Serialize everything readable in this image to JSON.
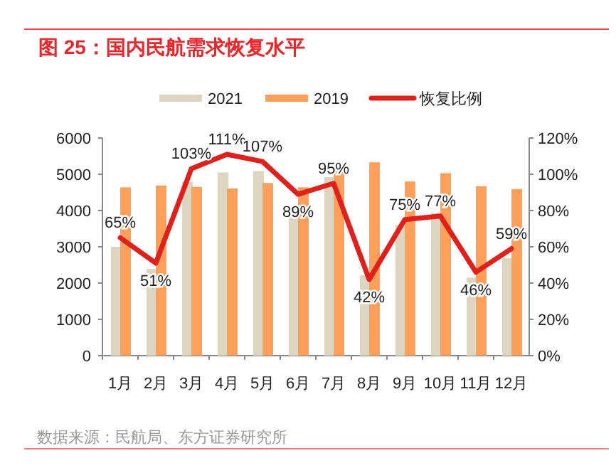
{
  "chart_data": {
    "type": "bar",
    "title": "图 25：国内民航需求恢复水平",
    "categories": [
      "1月",
      "2月",
      "3月",
      "4月",
      "5月",
      "6月",
      "7月",
      "8月",
      "9月",
      "10月",
      "11月",
      "12月"
    ],
    "series": [
      {
        "name": "2021",
        "color": "#ddd5bf",
        "values": [
          3000,
          2390,
          4790,
          5050,
          5090,
          4120,
          4920,
          2220,
          3610,
          3930,
          2150,
          2690
        ]
      },
      {
        "name": "2019",
        "color": "#ff9f5a",
        "values": [
          4640,
          4690,
          4650,
          4610,
          4760,
          4640,
          5160,
          5330,
          4800,
          5030,
          4670,
          4590
        ]
      },
      {
        "name": "恢复比例",
        "type": "line",
        "axis": "y2",
        "color": "#e0201b",
        "values": [
          65,
          51,
          103,
          111,
          107,
          89,
          95,
          42,
          75,
          77,
          46,
          59
        ],
        "value_labels": [
          "65%",
          "51%",
          "103%",
          "111%",
          "107%",
          "89%",
          "95%",
          "42%",
          "75%",
          "77%",
          "46%",
          "59%"
        ]
      }
    ],
    "ylim": [
      0,
      6000
    ],
    "yticks": [
      0,
      1000,
      2000,
      3000,
      4000,
      5000,
      6000
    ],
    "y2lim": [
      0,
      120
    ],
    "y2ticks": [
      {
        "value": 0,
        "label": "0%"
      },
      {
        "value": 20,
        "label": "20%"
      },
      {
        "value": 40,
        "label": "40%"
      },
      {
        "value": 60,
        "label": "60%"
      },
      {
        "value": 80,
        "label": "80%"
      },
      {
        "value": 100,
        "label": "100%"
      },
      {
        "value": 120,
        "label": "120%"
      }
    ],
    "legend": "top",
    "grid": false,
    "annotations": [
      "数据来源：民航局、东方证券研究所"
    ]
  }
}
